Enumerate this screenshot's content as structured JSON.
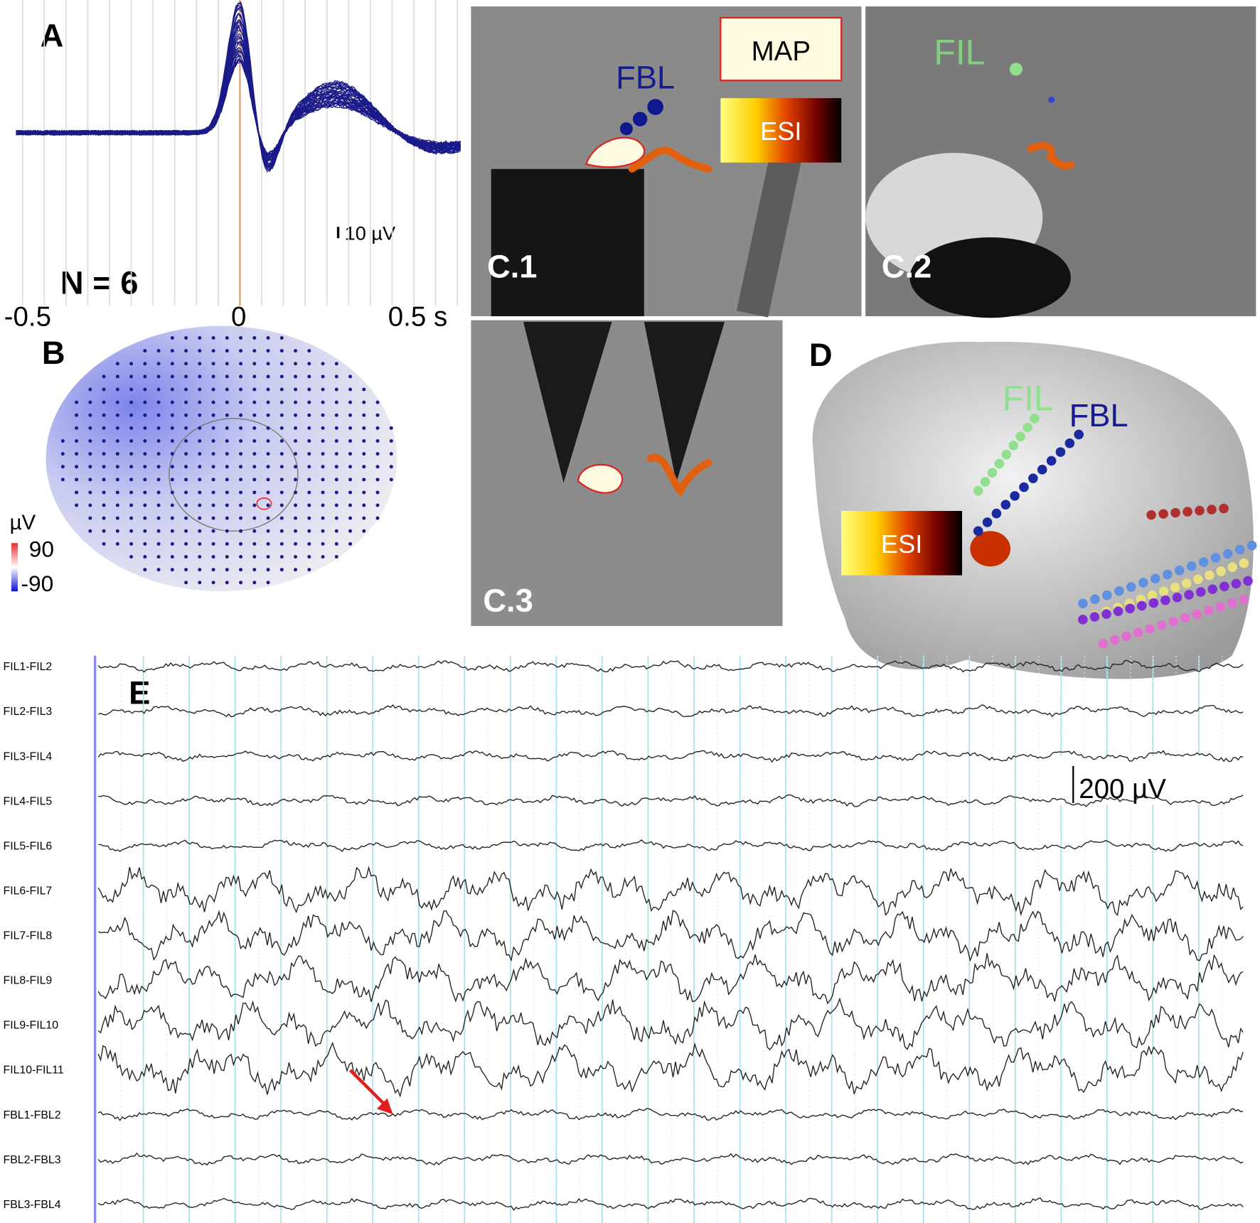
{
  "panels": {
    "A": {
      "label": "A",
      "scale_bar": "10 µV",
      "count": "N = 6",
      "time_labels": [
        "-0.5",
        "0",
        "0.5 s"
      ]
    },
    "B": {
      "label": "B",
      "unit": "µV",
      "colorbar_labels": [
        "90",
        "-90"
      ]
    },
    "C": {
      "map_legend": "MAP",
      "esi_legend": "ESI",
      "electrode_c1": "FBL",
      "electrode_c2": "FIL",
      "sublabels": [
        "C.1",
        "C.2",
        "C.3"
      ]
    },
    "D": {
      "label": "D",
      "electrodes": [
        "FIL",
        "FBL"
      ],
      "esi_legend": "ESI"
    },
    "E": {
      "label": "E",
      "scale_bar": "200 µV",
      "channels": [
        "FIL1-FIL2",
        "FIL2-FIL3",
        "FIL3-FIL4",
        "FIL4-FIL5",
        "FIL5-FIL6",
        "FIL6-FIL7",
        "FIL7-FIL8",
        "FIL8-FIL9",
        "FIL9-FIL10",
        "FIL10-FIL11",
        "FBL1-FBL2",
        "FBL2-FBL3",
        "FBL3-FBL4"
      ]
    }
  }
}
